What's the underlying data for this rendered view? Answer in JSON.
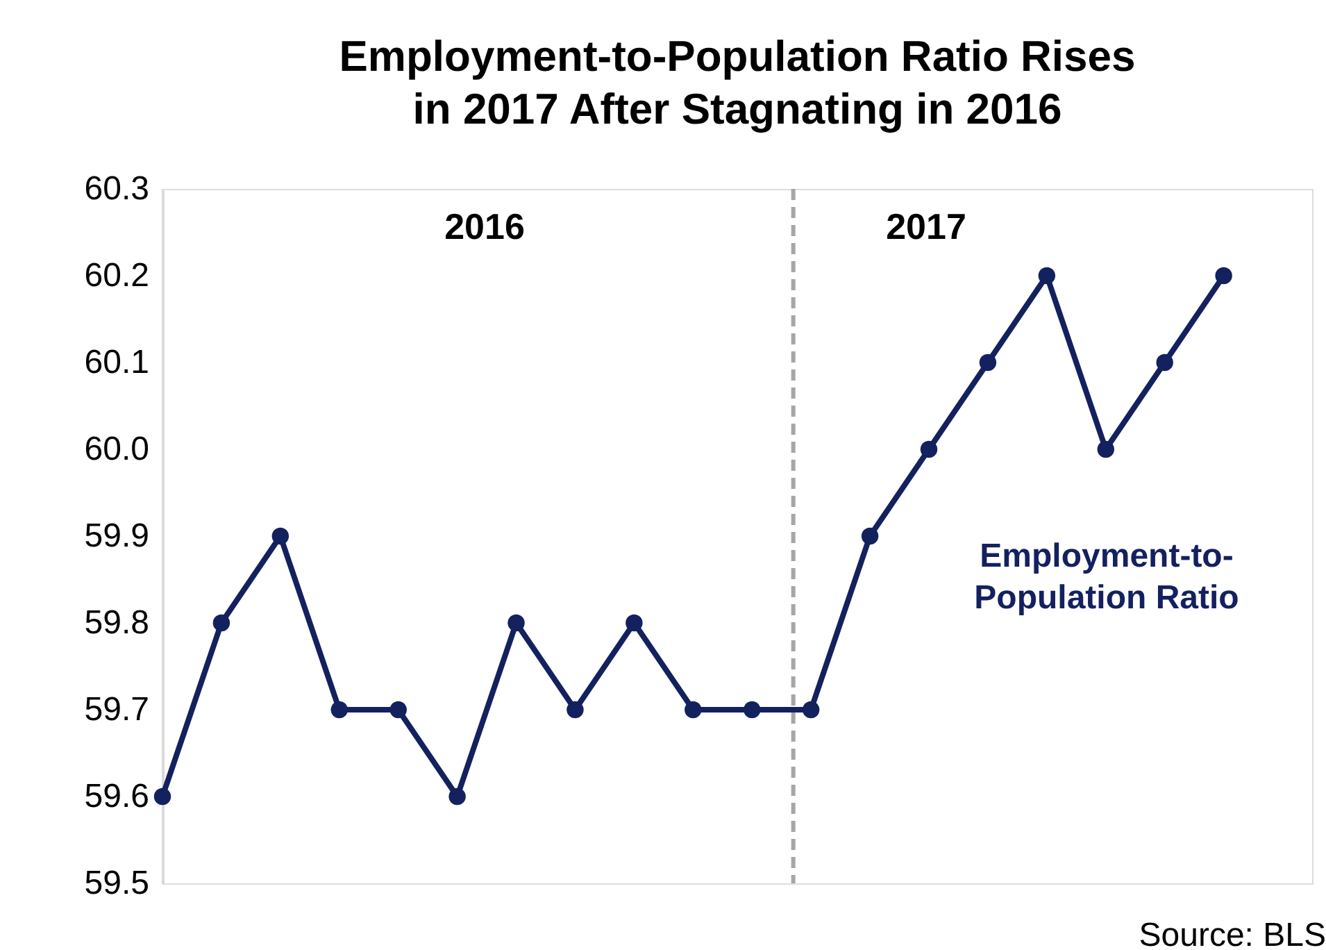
{
  "chart_data": {
    "type": "line",
    "title": "Employment-to-Population Ratio Rises in 2017 After Stagnating in 2016",
    "categories": [
      null,
      null,
      null,
      null,
      null,
      null,
      null,
      null,
      null,
      null,
      null,
      null,
      null,
      null,
      null,
      null,
      null,
      null,
      null
    ],
    "series": [
      {
        "name": "Employment-to-Population Ratio",
        "color": "#14215f",
        "values": [
          59.6,
          59.8,
          59.9,
          59.7,
          59.7,
          59.6,
          59.8,
          59.7,
          59.8,
          59.7,
          59.7,
          59.7,
          59.9,
          60.0,
          60.1,
          60.2,
          60.0,
          60.1,
          60.2
        ]
      }
    ],
    "ylim": [
      59.5,
      60.3
    ],
    "yticks": [
      59.5,
      59.6,
      59.7,
      59.8,
      59.9,
      {
        "value": 60.0,
        "label": "60.0"
      },
      60.1,
      60.2,
      60.3
    ],
    "tick_labels": "y",
    "grid": false,
    "legend": false,
    "marker": "circle",
    "line_style": "solid",
    "ref_lines": [
      {
        "axis": "x",
        "color": "#a6a6a6",
        "line_style": "dashed"
      }
    ],
    "annotations": [
      "2016",
      "2017",
      "Source: BLS"
    ]
  }
}
